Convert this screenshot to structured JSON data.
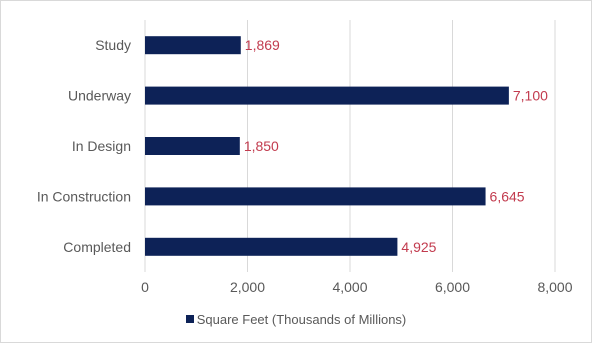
{
  "chart_data": {
    "type": "bar",
    "orientation": "horizontal",
    "categories": [
      "Study",
      "Underway",
      "In Design",
      "In Construction",
      "Completed"
    ],
    "series": [
      {
        "name": "Square Feet (Thousands of Millions)",
        "values": [
          1869,
          7100,
          1850,
          6645,
          4925
        ]
      }
    ],
    "data_labels": [
      "1,869",
      "7,100",
      "1,850",
      "6,645",
      "4,925"
    ],
    "x_ticks": [
      "0",
      "2,000",
      "4,000",
      "6,000",
      "8,000"
    ],
    "xlim": [
      0,
      8000
    ],
    "xlabel": "",
    "ylabel": "",
    "title": "",
    "grid": "vertical",
    "legend_position": "bottom",
    "colors": {
      "bar": "#0d2257",
      "data_label": "#c23b4e",
      "grid": "#d9d9d9",
      "text": "#595959"
    }
  }
}
